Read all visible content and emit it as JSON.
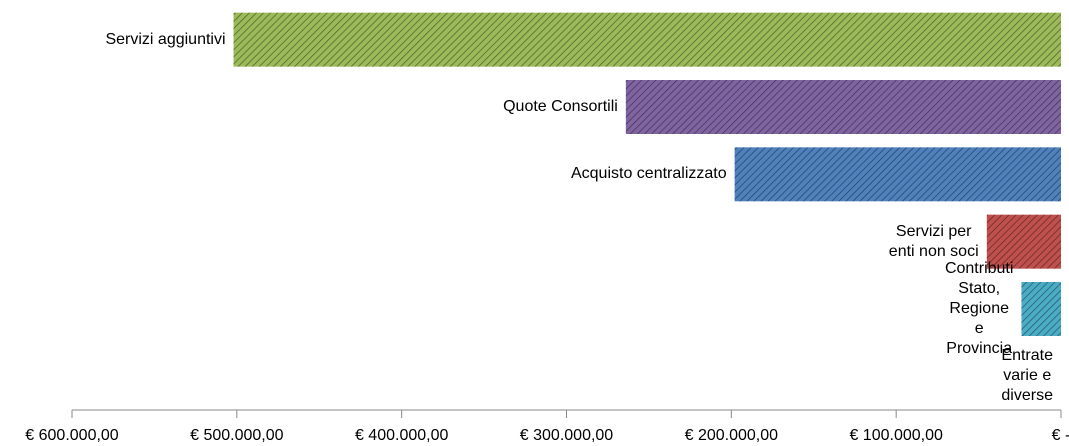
{
  "chart_data": {
    "type": "hbar",
    "categories": [
      "Servizi aggiuntivi",
      "Quote Consortili",
      "Acquisto centralizzato",
      "Servizi per enti non soci",
      "Contributi Stato, Regione e Provincia",
      "Entrate varie e diverse"
    ],
    "values": [
      502000,
      264000,
      198000,
      45000,
      24000,
      0
    ],
    "colors": [
      "#9bbb59",
      "#8064a2",
      "#4f81bd",
      "#c0504d",
      "#4bacc6",
      "#f79646"
    ],
    "xlim": [
      600000,
      0
    ],
    "xticks": [
      {
        "value": 600000,
        "label": "€ 600.000,00"
      },
      {
        "value": 500000,
        "label": "€ 500.000,00"
      },
      {
        "value": 400000,
        "label": "€ 400.000,00"
      },
      {
        "value": 300000,
        "label": "€ 300.000,00"
      },
      {
        "value": 200000,
        "label": "€ 200.000,00"
      },
      {
        "value": 100000,
        "label": "€ 100.000,00"
      },
      {
        "value": 0,
        "label": "€ -"
      }
    ],
    "hatch": true
  }
}
